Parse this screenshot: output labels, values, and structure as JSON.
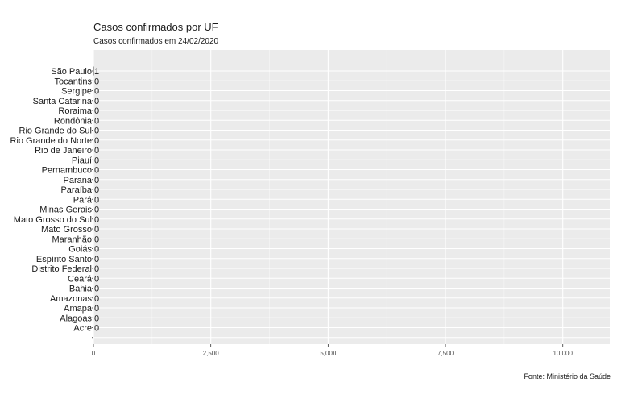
{
  "chart_data": {
    "type": "bar",
    "orientation": "horizontal",
    "title": "Casos confirmados por UF",
    "subtitle": "Casos confirmados em 24/02/2020",
    "caption": "Fonte: Ministério da Saúde",
    "xlabel": "",
    "ylabel": "",
    "categories": [
      "São Paulo",
      "Tocantins",
      "Sergipe",
      "Santa Catarina",
      "Roraima",
      "Rondônia",
      "Rio Grande do Sul",
      "Rio Grande do Norte",
      "Rio de Janeiro",
      "Piauí",
      "Pernambuco",
      "Paraná",
      "Paraíba",
      "Pará",
      "Minas Gerais",
      "Mato Grosso do Sul",
      "Mato Grosso",
      "Maranhão",
      "Goiás",
      "Espírito Santo",
      "Distrito Federal",
      "Ceará",
      "Bahia",
      "Amazonas",
      "Amapá",
      "Alagoas",
      "Acre",
      ""
    ],
    "values": [
      1,
      0,
      0,
      0,
      0,
      0,
      0,
      0,
      0,
      0,
      0,
      0,
      0,
      0,
      0,
      0,
      0,
      0,
      0,
      0,
      0,
      0,
      0,
      0,
      0,
      0,
      0,
      null
    ],
    "data_labels": [
      "1",
      "0",
      "0",
      "0",
      "0",
      "0",
      "0",
      "0",
      "0",
      "0",
      "0",
      "0",
      "0",
      "0",
      "0",
      "0",
      "0",
      "0",
      "0",
      "0",
      "0",
      "0",
      "0",
      "0",
      "0",
      "0",
      "0",
      ""
    ],
    "xlim": [
      0,
      11000
    ],
    "x_ticks": [
      0,
      2500,
      5000,
      7500,
      10000
    ],
    "x_tick_labels": [
      "0",
      "2,500",
      "5,000",
      "7,500",
      "10,000"
    ],
    "grid": true,
    "panel_color": "#ebebeb",
    "bar_color": "#595959"
  }
}
